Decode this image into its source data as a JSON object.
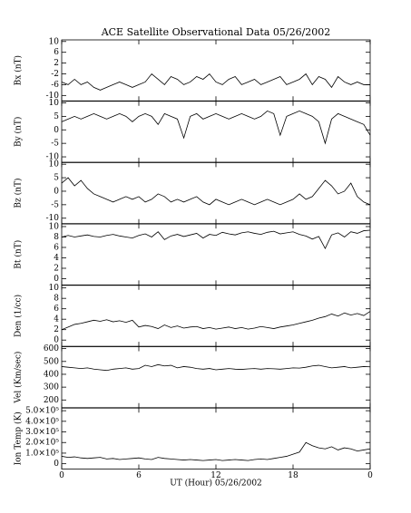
{
  "chart_data": [
    {
      "type": "line",
      "title": "ACE Satellite Observational Data   05/26/2002",
      "ylabel": "Bx (nT)",
      "color": "#000000",
      "xlim": [
        0,
        24
      ],
      "ylim": [
        -12,
        10.6
      ],
      "yticks": [
        10,
        6,
        2,
        -2,
        -6,
        -10
      ],
      "x": [
        0,
        0.5,
        1,
        1.5,
        2,
        2.5,
        3,
        3.5,
        4,
        4.5,
        5,
        5.5,
        6,
        6.5,
        7,
        7.5,
        8,
        8.5,
        9,
        9.5,
        10,
        10.5,
        11,
        11.5,
        12,
        12.5,
        13,
        13.5,
        14,
        14.5,
        15,
        15.5,
        16,
        16.5,
        17,
        17.5,
        18,
        18.5,
        19,
        19.5,
        20,
        20.5,
        21,
        21.5,
        22,
        22.5,
        23,
        23.5,
        24
      ],
      "values": [
        -5,
        -6,
        -4,
        -6,
        -5,
        -7,
        -8,
        -7,
        -6,
        -5,
        -6,
        -7,
        -6,
        -5,
        -2,
        -4,
        -6,
        -3,
        -4,
        -6,
        -5,
        -3,
        -4,
        -2,
        -5,
        -6,
        -4,
        -3,
        -6,
        -5,
        -4,
        -6,
        -5,
        -4,
        -3,
        -6,
        -5,
        -4,
        -2,
        -6,
        -3,
        -4,
        -7,
        -3,
        -5,
        -6,
        -5,
        -6,
        -6
      ]
    },
    {
      "type": "line",
      "ylabel": "By (nT)",
      "color": "#000000",
      "xlim": [
        0,
        24
      ],
      "ylim": [
        -12,
        10.6
      ],
      "yticks": [
        10,
        5,
        0,
        -5,
        -10
      ],
      "x": [
        0,
        0.5,
        1,
        1.5,
        2,
        2.5,
        3,
        3.5,
        4,
        4.5,
        5,
        5.5,
        6,
        6.5,
        7,
        7.5,
        8,
        8.5,
        9,
        9.5,
        10,
        10.5,
        11,
        11.5,
        12,
        12.5,
        13,
        13.5,
        14,
        14.5,
        15,
        15.5,
        16,
        16.5,
        17,
        17.5,
        18,
        18.5,
        19,
        19.5,
        20,
        20.5,
        21,
        21.5,
        22,
        22.5,
        23,
        23.5,
        24
      ],
      "values": [
        3,
        4,
        5,
        4,
        5,
        6,
        5,
        4,
        5,
        6,
        5,
        3,
        5,
        6,
        5,
        2,
        6,
        5,
        4,
        -3,
        5,
        6,
        4,
        5,
        6,
        5,
        4,
        5,
        6,
        5,
        4,
        5,
        7,
        6,
        -2,
        5,
        6,
        7,
        6,
        5,
        3,
        -5,
        4,
        6,
        5,
        4,
        3,
        2,
        -2
      ]
    },
    {
      "type": "line",
      "ylabel": "Bz (nT)",
      "color": "#000000",
      "xlim": [
        0,
        24
      ],
      "ylim": [
        -12,
        10.6
      ],
      "yticks": [
        10,
        5,
        0,
        -5,
        -10
      ],
      "x": [
        0,
        0.5,
        1,
        1.5,
        2,
        2.5,
        3,
        3.5,
        4,
        4.5,
        5,
        5.5,
        6,
        6.5,
        7,
        7.5,
        8,
        8.5,
        9,
        9.5,
        10,
        10.5,
        11,
        11.5,
        12,
        12.5,
        13,
        13.5,
        14,
        14.5,
        15,
        15.5,
        16,
        16.5,
        17,
        17.5,
        18,
        18.5,
        19,
        19.5,
        20,
        20.5,
        21,
        21.5,
        22,
        22.5,
        23,
        23.5,
        24
      ],
      "values": [
        3,
        5,
        2,
        4,
        1,
        -1,
        -2,
        -3,
        -4,
        -3,
        -2,
        -3,
        -2,
        -4,
        -3,
        -1,
        -2,
        -4,
        -3,
        -4,
        -3,
        -2,
        -4,
        -5,
        -3,
        -4,
        -5,
        -4,
        -3,
        -4,
        -5,
        -4,
        -3,
        -4,
        -5,
        -4,
        -3,
        -1,
        -3,
        -2,
        1,
        4,
        2,
        -1,
        0,
        3,
        -2,
        -4,
        -5
      ]
    },
    {
      "type": "line",
      "ylabel": "Bt (nT)",
      "color": "#000000",
      "xlim": [
        0,
        24
      ],
      "ylim": [
        -1.2,
        10.5
      ],
      "yticks": [
        10,
        8,
        6,
        4,
        2,
        0
      ],
      "x": [
        0,
        0.5,
        1,
        1.5,
        2,
        2.5,
        3,
        3.5,
        4,
        4.5,
        5,
        5.5,
        6,
        6.5,
        7,
        7.5,
        8,
        8.5,
        9,
        9.5,
        10,
        10.5,
        11,
        11.5,
        12,
        12.5,
        13,
        13.5,
        14,
        14.5,
        15,
        15.5,
        16,
        16.5,
        17,
        17.5,
        18,
        18.5,
        19,
        19.5,
        20,
        20.5,
        21,
        21.5,
        22,
        22.5,
        23,
        23.5,
        24
      ],
      "values": [
        8,
        8.3,
        8,
        8.2,
        8.4,
        8.1,
        8,
        8.3,
        8.5,
        8.2,
        8,
        7.8,
        8.3,
        8.6,
        8,
        9,
        7.5,
        8.2,
        8.5,
        8.1,
        8.4,
        8.7,
        7.8,
        8.5,
        8.3,
        8.9,
        8.6,
        8.4,
        8.8,
        9,
        8.7,
        8.5,
        8.9,
        9.1,
        8.6,
        8.8,
        9,
        8.5,
        8.2,
        7.6,
        8.1,
        5.8,
        8.4,
        8.8,
        8,
        9,
        8.7,
        9.2,
        9.3
      ]
    },
    {
      "type": "line",
      "ylabel": "Den (1/cc)",
      "color": "#000000",
      "xlim": [
        0,
        24
      ],
      "ylim": [
        -1.2,
        10.5
      ],
      "yticks": [
        10,
        8,
        6,
        4,
        2,
        0
      ],
      "x": [
        0,
        0.5,
        1,
        1.5,
        2,
        2.5,
        3,
        3.5,
        4,
        4.5,
        5,
        5.5,
        6,
        6.5,
        7,
        7.5,
        8,
        8.5,
        9,
        9.5,
        10,
        10.5,
        11,
        11.5,
        12,
        12.5,
        13,
        13.5,
        14,
        14.5,
        15,
        15.5,
        16,
        16.5,
        17,
        17.5,
        18,
        18.5,
        19,
        19.5,
        20,
        20.5,
        21,
        21.5,
        22,
        22.5,
        23,
        23.5,
        24
      ],
      "values": [
        2,
        2.5,
        3,
        3.2,
        3.5,
        3.8,
        3.6,
        3.9,
        3.5,
        3.7,
        3.4,
        3.8,
        2.5,
        2.8,
        2.6,
        2.2,
        2.9,
        2.4,
        2.7,
        2.3,
        2.5,
        2.6,
        2.2,
        2.4,
        2.1,
        2.3,
        2.5,
        2.2,
        2.4,
        2.1,
        2.3,
        2.6,
        2.4,
        2.2,
        2.5,
        2.7,
        2.9,
        3.2,
        3.5,
        3.8,
        4.2,
        4.5,
        5,
        4.6,
        5.2,
        4.8,
        5.1,
        4.7,
        5.5
      ]
    },
    {
      "type": "line",
      "ylabel": "Vel (Km/sec)",
      "color": "#000000",
      "xlim": [
        0,
        24
      ],
      "ylim": [
        140,
        615
      ],
      "yticks": [
        600,
        500,
        400,
        300,
        200
      ],
      "x": [
        0,
        0.5,
        1,
        1.5,
        2,
        2.5,
        3,
        3.5,
        4,
        4.5,
        5,
        5.5,
        6,
        6.5,
        7,
        7.5,
        8,
        8.5,
        9,
        9.5,
        10,
        10.5,
        11,
        11.5,
        12,
        12.5,
        13,
        13.5,
        14,
        14.5,
        15,
        15.5,
        16,
        16.5,
        17,
        17.5,
        18,
        18.5,
        19,
        19.5,
        20,
        20.5,
        21,
        21.5,
        22,
        22.5,
        23,
        23.5,
        24
      ],
      "values": [
        460,
        455,
        450,
        445,
        450,
        440,
        435,
        430,
        440,
        445,
        450,
        440,
        445,
        470,
        460,
        475,
        465,
        470,
        450,
        460,
        455,
        445,
        440,
        445,
        435,
        440,
        445,
        440,
        438,
        442,
        445,
        440,
        445,
        443,
        440,
        445,
        450,
        448,
        455,
        465,
        470,
        460,
        450,
        455,
        460,
        450,
        455,
        460,
        458
      ]
    },
    {
      "type": "line",
      "ylabel": "Ion Temp (K)",
      "xlabel": "UT (Hour)   05/26/2002",
      "color": "#000000",
      "xlim": [
        0,
        24
      ],
      "ylim": [
        -50000,
        525000
      ],
      "yticks": [
        {
          "value": 500000,
          "label": "5.0×10⁵"
        },
        {
          "value": 400000,
          "label": "4.0×10⁵"
        },
        {
          "value": 300000,
          "label": "3.0×10⁵"
        },
        {
          "value": 200000,
          "label": "2.0×10⁵"
        },
        {
          "value": 100000,
          "label": "1.0×10⁵"
        },
        0
      ],
      "xticks": [
        0,
        6,
        12,
        18,
        {
          "value": 24,
          "label": "0"
        }
      ],
      "x": [
        0,
        0.5,
        1,
        1.5,
        2,
        2.5,
        3,
        3.5,
        4,
        4.5,
        5,
        5.5,
        6,
        6.5,
        7,
        7.5,
        8,
        8.5,
        9,
        9.5,
        10,
        10.5,
        11,
        11.5,
        12,
        12.5,
        13,
        13.5,
        14,
        14.5,
        15,
        15.5,
        16,
        16.5,
        17,
        17.5,
        18,
        18.5,
        19,
        19.5,
        20,
        20.5,
        21,
        21.5,
        22,
        22.5,
        23,
        23.5,
        24
      ],
      "values": [
        70000,
        60000,
        65000,
        55000,
        50000,
        55000,
        60000,
        45000,
        50000,
        40000,
        45000,
        50000,
        55000,
        45000,
        40000,
        60000,
        50000,
        45000,
        40000,
        35000,
        40000,
        35000,
        30000,
        35000,
        40000,
        30000,
        35000,
        40000,
        35000,
        30000,
        40000,
        45000,
        40000,
        50000,
        60000,
        70000,
        90000,
        110000,
        200000,
        170000,
        150000,
        140000,
        160000,
        130000,
        150000,
        140000,
        120000,
        130000,
        140000
      ]
    }
  ]
}
